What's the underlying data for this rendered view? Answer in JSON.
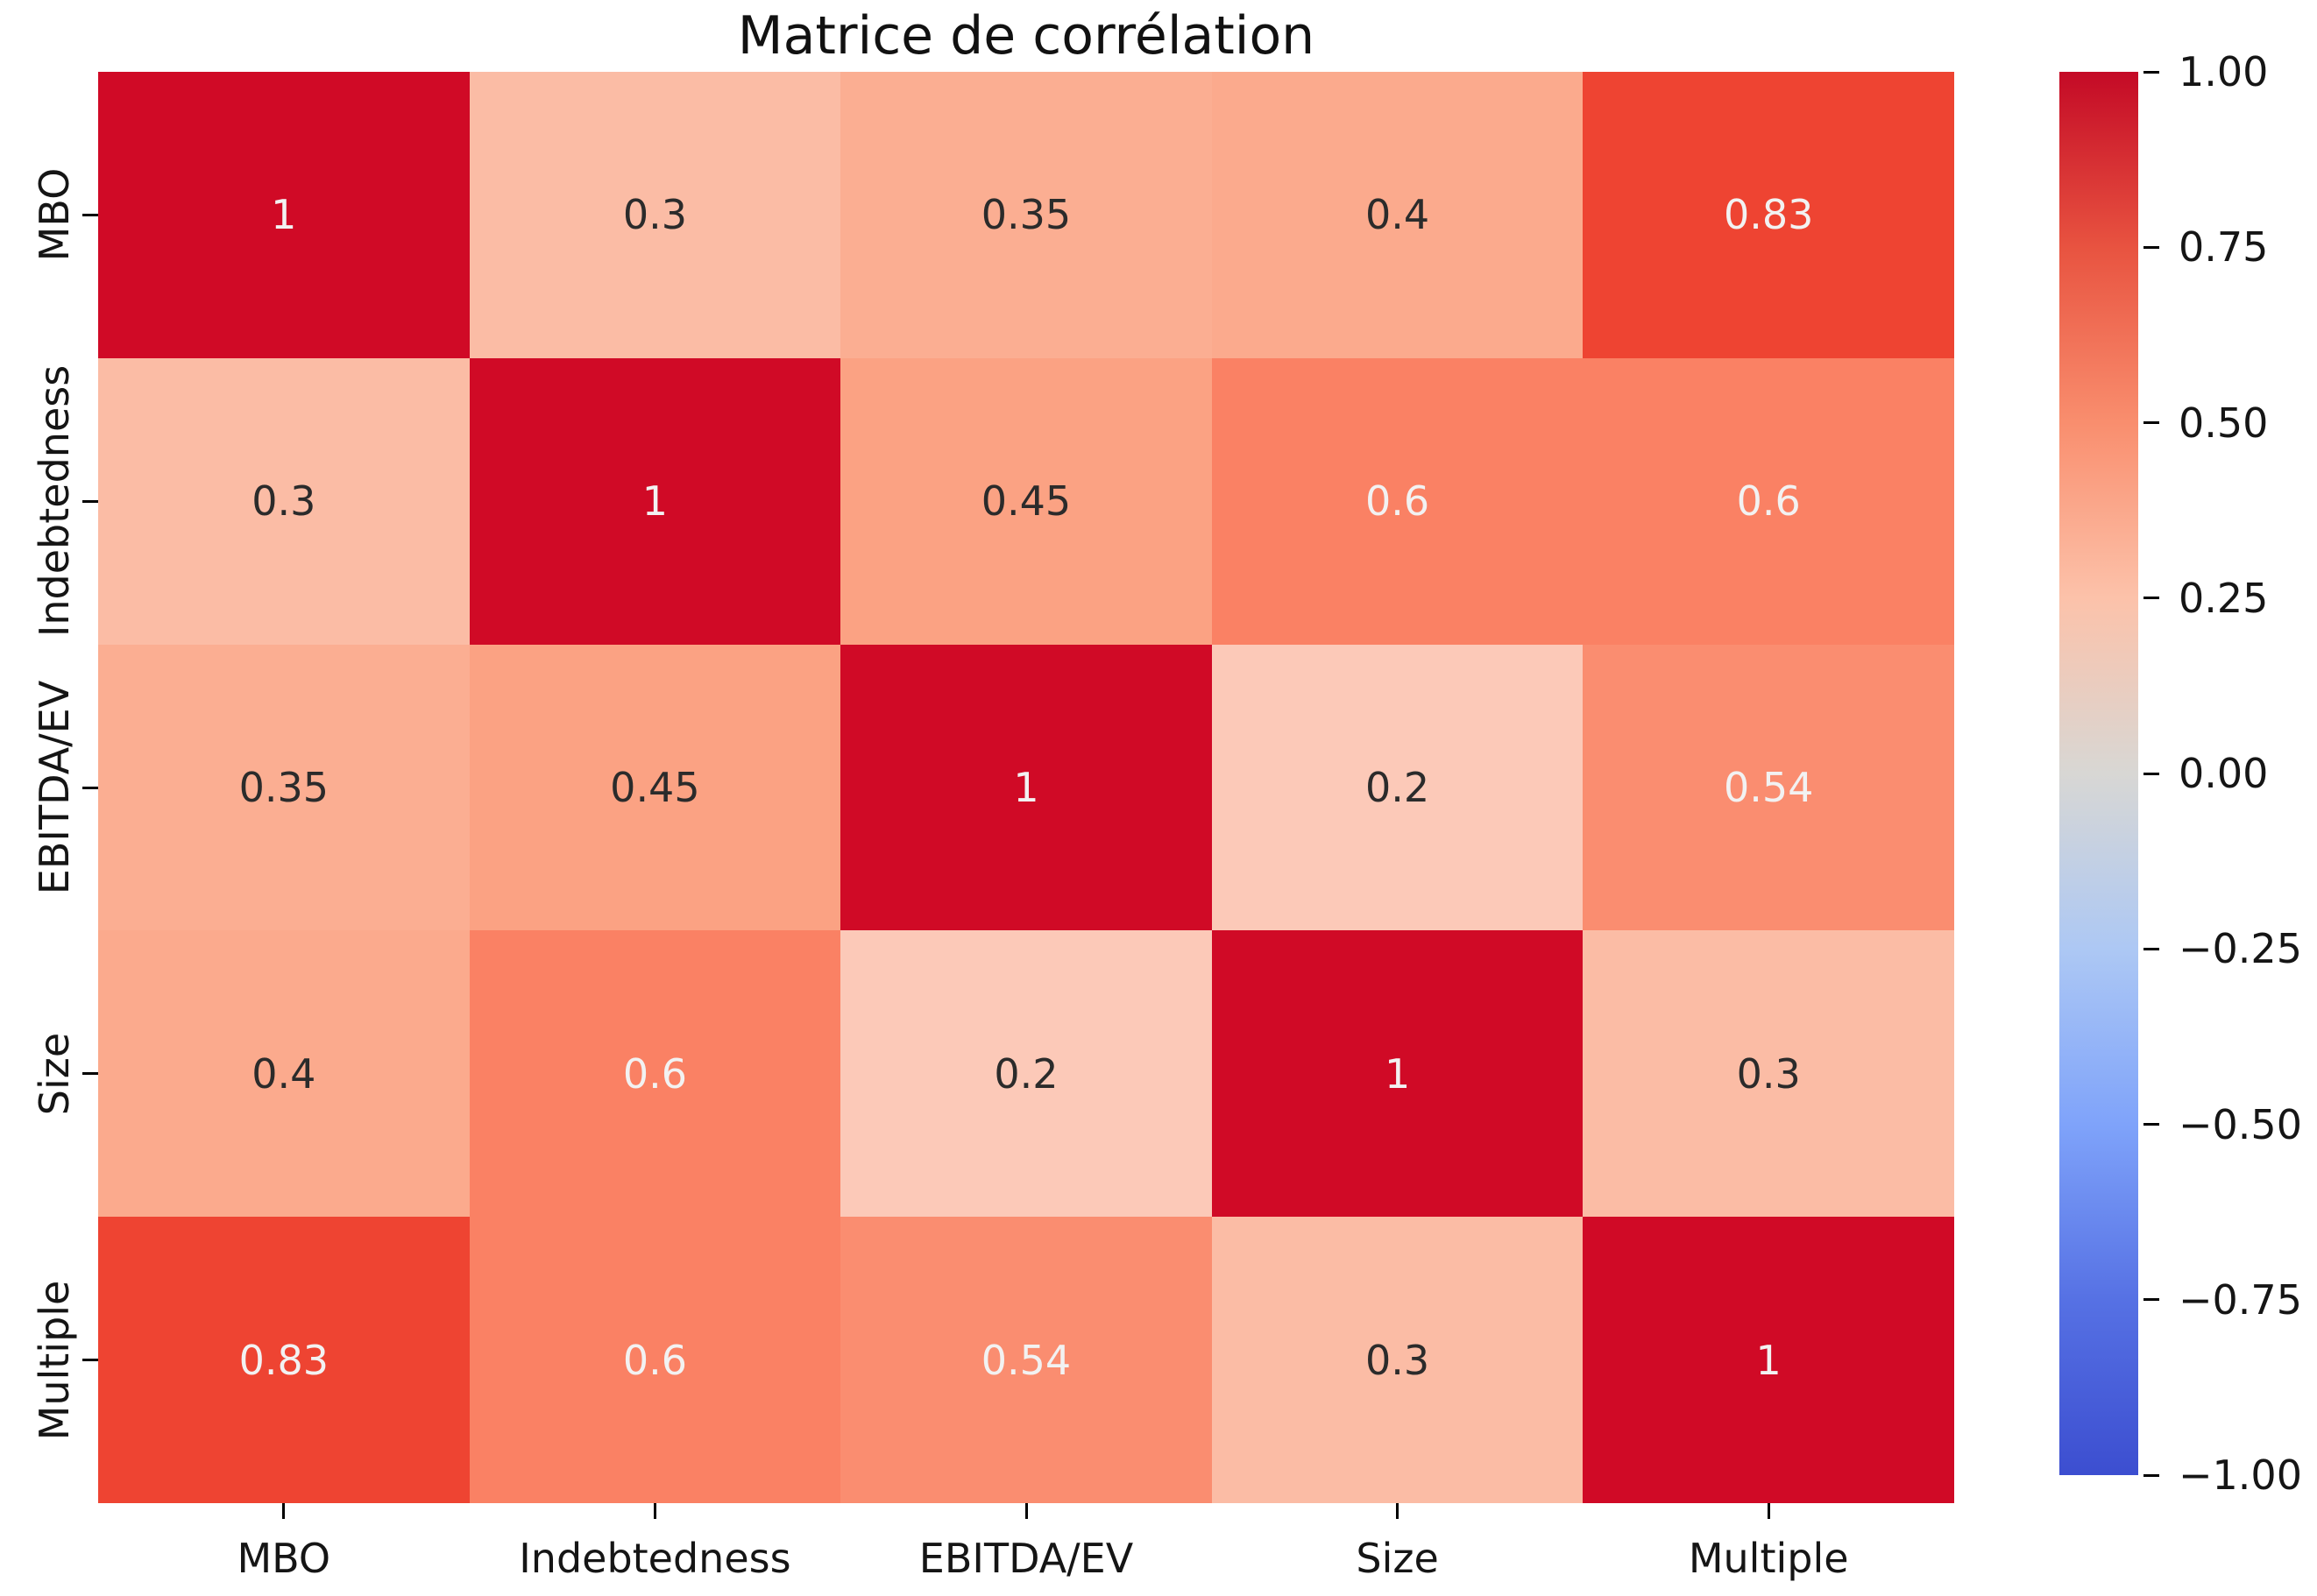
{
  "figure": {
    "title": "Matrice de corrélation"
  },
  "chart_data": {
    "type": "heatmap",
    "title": "Matrice de corrélation",
    "categories": [
      "MBO",
      "Indebtedness",
      "EBITDA/EV",
      "Size",
      "Multiple"
    ],
    "matrix": [
      [
        1,
        0.3,
        0.35,
        0.4,
        0.83
      ],
      [
        0.3,
        1,
        0.45,
        0.6,
        0.6
      ],
      [
        0.35,
        0.45,
        1,
        0.2,
        0.54
      ],
      [
        0.4,
        0.6,
        0.2,
        1,
        0.3
      ],
      [
        0.83,
        0.6,
        0.54,
        0.3,
        1
      ]
    ],
    "vmin": -1,
    "vmax": 1,
    "colormap": "coolwarm",
    "grid_on": false,
    "value_colors": {
      "1": "#d00a26",
      "0.83": "#ee4432",
      "0.6": "#fa8164",
      "0.54": "#fa8d70",
      "0.45": "#fba283",
      "0.4": "#fbaa8d",
      "0.35": "#fbae92",
      "0.3": "#fbbca5",
      "0.2": "#fcc9b8"
    },
    "annotation_colors": {
      "light": "#f2f2f2",
      "dark": "#2b2b2b",
      "white_text_min_value": 0.5
    },
    "colorbar": {
      "position": "right",
      "tick_labels": [
        "1.00",
        "0.75",
        "0.50",
        "0.25",
        "0.00",
        "−0.25",
        "−0.50",
        "−0.75",
        "−1.00"
      ],
      "gradient_stops": [
        {
          "pos": 0,
          "color": "#c40a26"
        },
        {
          "pos": 12.5,
          "color": "#e85340"
        },
        {
          "pos": 25,
          "color": "#f98e6e"
        },
        {
          "pos": 37.5,
          "color": "#fcc2aa"
        },
        {
          "pos": 50,
          "color": "#d8d7d4"
        },
        {
          "pos": 62.5,
          "color": "#adc8f4"
        },
        {
          "pos": 75,
          "color": "#7fa3fa"
        },
        {
          "pos": 87.5,
          "color": "#5671e4"
        },
        {
          "pos": 100,
          "color": "#3c4ed0"
        }
      ]
    }
  }
}
